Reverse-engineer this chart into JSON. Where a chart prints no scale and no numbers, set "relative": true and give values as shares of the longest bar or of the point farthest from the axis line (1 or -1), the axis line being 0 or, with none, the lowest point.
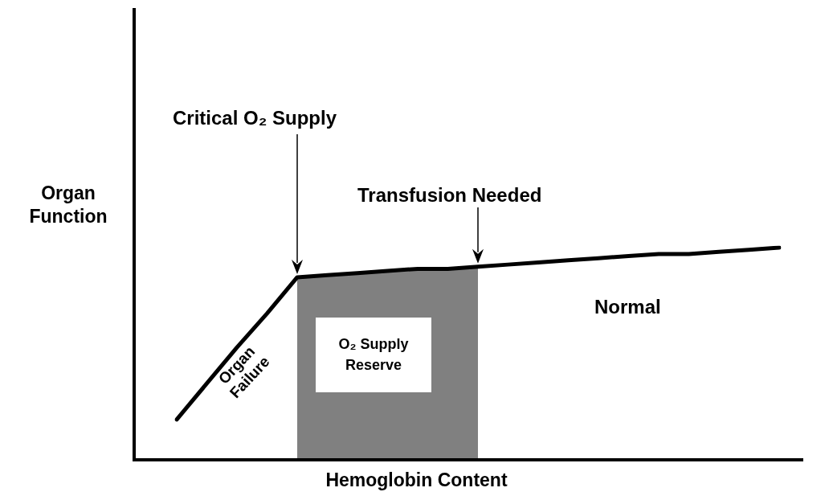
{
  "chart_data": {
    "type": "line",
    "relative": true,
    "xlabel": "Hemoglobin Content",
    "ylabel": "Organ Function",
    "categories": [
      null,
      null,
      null,
      null,
      null,
      null,
      null,
      null,
      null,
      null,
      null,
      null,
      null,
      null,
      null,
      null,
      null,
      null,
      null,
      null,
      null
    ],
    "series": [
      {
        "type": "area",
        "color": "#808080",
        "values": [
          null,
          null,
          null,
          null,
          0.86,
          0.87,
          0.88,
          0.89,
          0.9,
          0.9,
          0.91,
          null,
          null,
          null,
          null,
          null,
          null,
          null,
          null,
          null,
          null
        ]
      },
      {
        "color": "#000000",
        "values": [
          0.19,
          0.36,
          0.53,
          0.69,
          0.86,
          0.87,
          0.88,
          0.89,
          0.9,
          0.9,
          0.91,
          0.92,
          0.93,
          0.94,
          0.95,
          0.96,
          0.97,
          0.97,
          0.98,
          0.99,
          1.0
        ]
      }
    ],
    "annotations": [
      "Critical O₂ Supply",
      "Transfusion Needed",
      "Normal",
      "Organ Failure",
      "O₂ Supply Reserve"
    ],
    "marker": "none",
    "legend": false
  }
}
